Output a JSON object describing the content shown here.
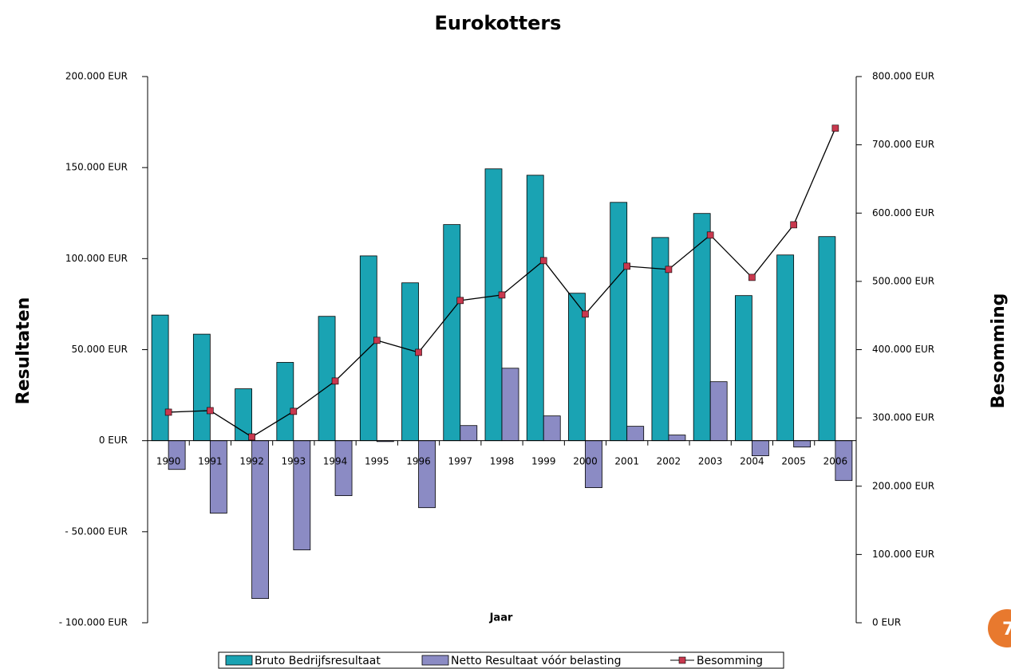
{
  "chart_data": {
    "type": "bar",
    "title": "Eurokotters",
    "ylabel": "Resultaten",
    "y2label": "Besomming",
    "xlabel": "Jaar",
    "categories": [
      "1990",
      "1991",
      "1992",
      "1993",
      "1994",
      "1995",
      "1996",
      "1997",
      "1998",
      "1999",
      "2000",
      "2001",
      "2002",
      "2003",
      "2004",
      "2005",
      "2006"
    ],
    "series": [
      {
        "name": "Bruto Bedrijfsresultaat",
        "type": "bar",
        "color": "#1aa3b3",
        "values": [
          69000,
          58500,
          28500,
          43000,
          68300,
          101500,
          86700,
          118700,
          149300,
          145800,
          81000,
          130900,
          111600,
          124800,
          79700,
          102000,
          112100
        ]
      },
      {
        "name": "Netto Resultaat vóór belasting",
        "type": "bar",
        "color": "#8b8bc4",
        "values": [
          -15800,
          -39800,
          -86700,
          -60000,
          -30200,
          -500,
          -36800,
          8300,
          39800,
          13600,
          -25800,
          7900,
          3100,
          32400,
          -8300,
          -3500,
          -21900
        ]
      },
      {
        "name": "Besomming",
        "type": "line",
        "axis": "y2",
        "color": "#000000",
        "marker_color": "#c8384e",
        "values": [
          308400,
          310700,
          272200,
          309600,
          354000,
          413600,
          396000,
          472000,
          480100,
          530400,
          452100,
          522200,
          517500,
          567800,
          505800,
          582900,
          724300
        ]
      }
    ],
    "ylim": [
      -100000,
      200000
    ],
    "yticks": [
      {
        "value": -100000,
        "label": "- 100.000 EUR"
      },
      {
        "value": -50000,
        "label": "- 50.000 EUR"
      },
      {
        "value": 0,
        "label": "0 EUR"
      },
      {
        "value": 50000,
        "label": "50.000 EUR"
      },
      {
        "value": 100000,
        "label": "100.000 EUR"
      },
      {
        "value": 150000,
        "label": "150.000 EUR"
      },
      {
        "value": 200000,
        "label": "200.000 EUR"
      }
    ],
    "y2lim": [
      0,
      800000
    ],
    "y2ticks": [
      {
        "value": 0,
        "label": "0  EUR"
      },
      {
        "value": 100000,
        "label": "100.000 EUR"
      },
      {
        "value": 200000,
        "label": "200.000 EUR"
      },
      {
        "value": 300000,
        "label": "300.000 EUR"
      },
      {
        "value": 400000,
        "label": "400.000 EUR"
      },
      {
        "value": 500000,
        "label": "500.000 EUR"
      },
      {
        "value": 600000,
        "label": "600.000 EUR"
      },
      {
        "value": 700000,
        "label": "700.000 EUR"
      },
      {
        "value": 800000,
        "label": "800.000 EUR"
      }
    ],
    "grid": false,
    "legend": "bottom"
  },
  "page_number": "7"
}
